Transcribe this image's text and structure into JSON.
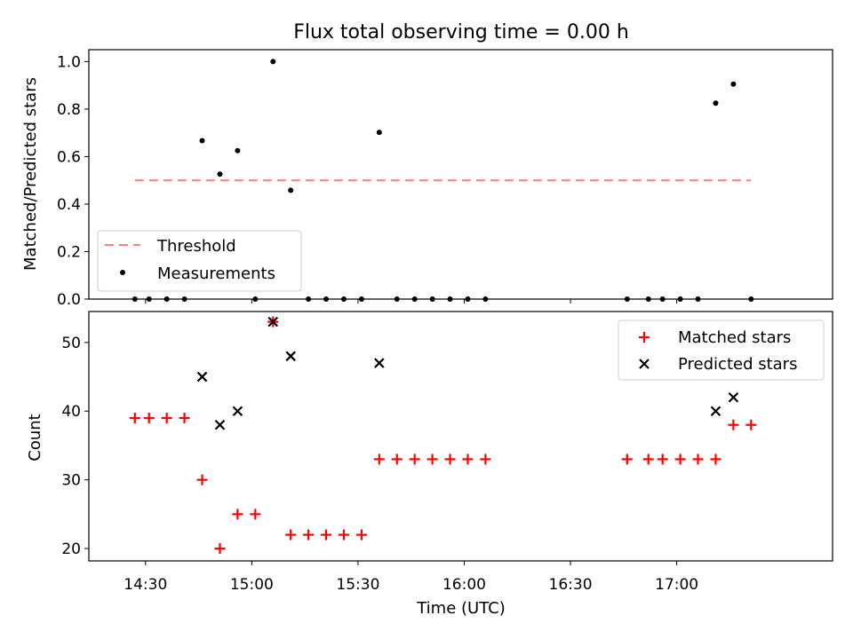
{
  "chart_data": [
    {
      "type": "scatter",
      "title": "Flux total observing time = 0.00 h",
      "xlabel": "",
      "ylabel": "Matched/Predicted stars",
      "ylim": [
        0,
        1.05
      ],
      "yticks": [
        "0.0",
        "0.2",
        "0.4",
        "0.6",
        "0.8",
        "1.0"
      ],
      "ytick_values": [
        0,
        0.2,
        0.4,
        0.6,
        0.8,
        1.0
      ],
      "xlim": [
        "14:14",
        "17:44"
      ],
      "grid": false,
      "legend_position": "lower-left",
      "threshold": {
        "name": "Threshold",
        "value": 0.5,
        "x_start": "14:27",
        "x_end": "17:21",
        "color": "#ff7f7f",
        "style": "dashed"
      },
      "series": [
        {
          "name": "Measurements",
          "color": "#000000",
          "marker": "dot",
          "points": [
            {
              "x": "14:27",
              "y": 0.0
            },
            {
              "x": "14:31",
              "y": 0.0
            },
            {
              "x": "14:36",
              "y": 0.0
            },
            {
              "x": "14:41",
              "y": 0.0
            },
            {
              "x": "14:46",
              "y": 0.667
            },
            {
              "x": "14:51",
              "y": 0.526
            },
            {
              "x": "14:56",
              "y": 0.625
            },
            {
              "x": "15:01",
              "y": 0.0
            },
            {
              "x": "15:06",
              "y": 1.0
            },
            {
              "x": "15:11",
              "y": 0.458
            },
            {
              "x": "15:16",
              "y": 0.0
            },
            {
              "x": "15:21",
              "y": 0.0
            },
            {
              "x": "15:26",
              "y": 0.0
            },
            {
              "x": "15:31",
              "y": 0.0
            },
            {
              "x": "15:36",
              "y": 0.702
            },
            {
              "x": "15:41",
              "y": 0.0
            },
            {
              "x": "15:46",
              "y": 0.0
            },
            {
              "x": "15:51",
              "y": 0.0
            },
            {
              "x": "15:56",
              "y": 0.0
            },
            {
              "x": "16:01",
              "y": 0.0
            },
            {
              "x": "16:06",
              "y": 0.0
            },
            {
              "x": "16:46",
              "y": 0.0
            },
            {
              "x": "16:52",
              "y": 0.0
            },
            {
              "x": "16:56",
              "y": 0.0
            },
            {
              "x": "17:01",
              "y": 0.0
            },
            {
              "x": "17:06",
              "y": 0.0
            },
            {
              "x": "17:11",
              "y": 0.825
            },
            {
              "x": "17:16",
              "y": 0.905
            },
            {
              "x": "17:21",
              "y": 0.0
            }
          ]
        }
      ]
    },
    {
      "type": "scatter",
      "title": "",
      "xlabel": "Time (UTC)",
      "ylabel": "Count",
      "ylim": [
        18.2,
        54.5
      ],
      "yticks": [
        "20",
        "30",
        "40",
        "50"
      ],
      "ytick_values": [
        20,
        30,
        40,
        50
      ],
      "xlim": [
        "14:14",
        "17:44"
      ],
      "xticks": [
        "14:30",
        "15:00",
        "15:30",
        "16:00",
        "16:30",
        "17:00"
      ],
      "grid": false,
      "legend_position": "upper-right",
      "series": [
        {
          "name": "Matched stars",
          "color": "#ff0000",
          "marker": "plus",
          "points": [
            {
              "x": "14:27",
              "y": 39
            },
            {
              "x": "14:31",
              "y": 39
            },
            {
              "x": "14:36",
              "y": 39
            },
            {
              "x": "14:41",
              "y": 39
            },
            {
              "x": "14:46",
              "y": 30
            },
            {
              "x": "14:51",
              "y": 20
            },
            {
              "x": "14:56",
              "y": 25
            },
            {
              "x": "15:01",
              "y": 25
            },
            {
              "x": "15:06",
              "y": 53
            },
            {
              "x": "15:11",
              "y": 22
            },
            {
              "x": "15:16",
              "y": 22
            },
            {
              "x": "15:21",
              "y": 22
            },
            {
              "x": "15:26",
              "y": 22
            },
            {
              "x": "15:31",
              "y": 22
            },
            {
              "x": "15:36",
              "y": 33
            },
            {
              "x": "15:41",
              "y": 33
            },
            {
              "x": "15:46",
              "y": 33
            },
            {
              "x": "15:51",
              "y": 33
            },
            {
              "x": "15:56",
              "y": 33
            },
            {
              "x": "16:01",
              "y": 33
            },
            {
              "x": "16:06",
              "y": 33
            },
            {
              "x": "16:46",
              "y": 33
            },
            {
              "x": "16:52",
              "y": 33
            },
            {
              "x": "16:56",
              "y": 33
            },
            {
              "x": "17:01",
              "y": 33
            },
            {
              "x": "17:06",
              "y": 33
            },
            {
              "x": "17:11",
              "y": 33
            },
            {
              "x": "17:16",
              "y": 38
            },
            {
              "x": "17:21",
              "y": 38
            }
          ]
        },
        {
          "name": "Predicted stars",
          "color": "#000000",
          "marker": "x",
          "points": [
            {
              "x": "14:46",
              "y": 45
            },
            {
              "x": "14:51",
              "y": 38
            },
            {
              "x": "14:56",
              "y": 40
            },
            {
              "x": "15:06",
              "y": 53
            },
            {
              "x": "15:11",
              "y": 48
            },
            {
              "x": "15:36",
              "y": 47
            },
            {
              "x": "17:11",
              "y": 40
            },
            {
              "x": "17:16",
              "y": 42
            }
          ]
        }
      ]
    }
  ]
}
